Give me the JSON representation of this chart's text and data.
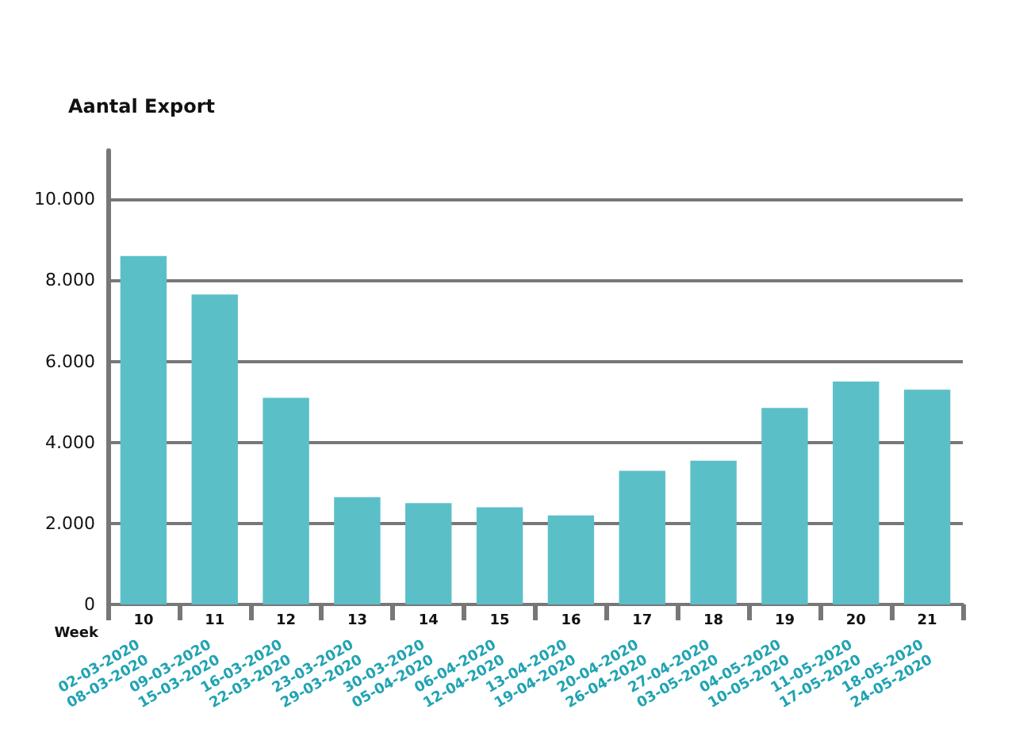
{
  "chart_data": {
    "type": "bar",
    "title": "Aantal Export",
    "xlabel": "Week",
    "categories": [
      "10",
      "11",
      "12",
      "13",
      "14",
      "15",
      "16",
      "17",
      "18",
      "19",
      "20",
      "21"
    ],
    "values": [
      8600,
      7650,
      5100,
      2650,
      2500,
      2400,
      2200,
      3300,
      3550,
      4850,
      5500,
      5300
    ],
    "color": "#5bbfc8",
    "ylim": [
      0,
      11200
    ],
    "yticks": [
      0,
      {
        "value": 2000,
        "label": "2.000"
      },
      {
        "value": 4000,
        "label": "4.000"
      },
      {
        "value": 6000,
        "label": "6.000"
      },
      {
        "value": 8000,
        "label": "8.000"
      },
      {
        "value": 10000,
        "label": "10.000"
      }
    ],
    "grid": "y",
    "annotations": [
      "02-03-2020\n08-03-2020",
      "09-03-2020\n15-03-2020",
      "16-03-2020\n22-03-2020",
      "23-03-2020\n29-03-2020",
      "30-03-2020\n05-04-2020",
      "06-04-2020\n12-04-2020",
      "13-04-2020\n19-04-2020",
      "20-04-2020\n26-04-2020",
      "27-04-2020\n03-05-2020",
      "04-05-2020\n10-05-2020",
      "11-05-2020\n17-05-2020",
      "18-05-2020\n24-05-2020"
    ]
  }
}
